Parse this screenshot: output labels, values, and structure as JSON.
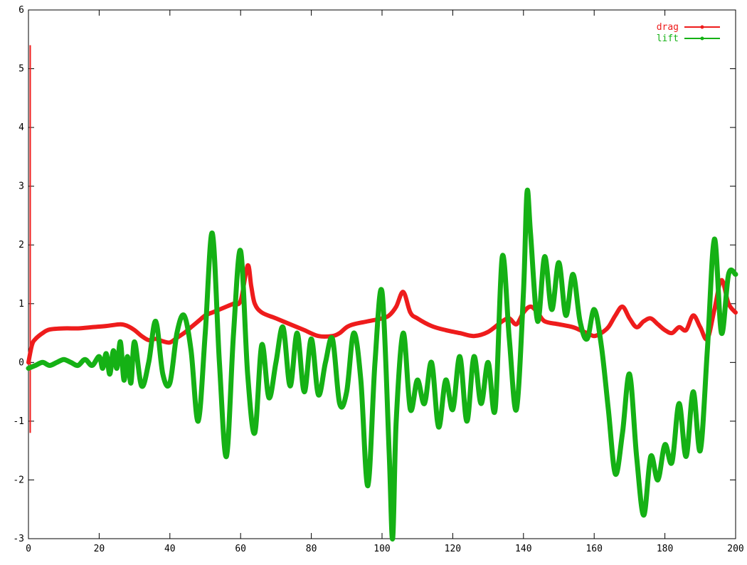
{
  "chart_data": {
    "type": "line",
    "title": "",
    "xlabel": "",
    "ylabel": "",
    "xlim": [
      0,
      200
    ],
    "ylim": [
      -3,
      6
    ],
    "x_ticks": [
      0,
      20,
      40,
      60,
      80,
      100,
      120,
      140,
      160,
      180,
      200
    ],
    "y_ticks": [
      -3,
      -2,
      -1,
      0,
      1,
      2,
      3,
      4,
      5,
      6
    ],
    "grid": false,
    "legend": {
      "position": "top-right",
      "entries": [
        {
          "name": "drag",
          "color": "#ee1c1c"
        },
        {
          "name": "lift",
          "color": "#15b115"
        }
      ]
    },
    "series": [
      {
        "name": "drag",
        "color": "#ee1c1c",
        "initial_spike": {
          "x": 0.5,
          "y_top": 5.4,
          "y_bottom": -1.2
        },
        "x": [
          0,
          1,
          2,
          4,
          6,
          10,
          14,
          18,
          22,
          26,
          28,
          30,
          32,
          34,
          36,
          38,
          40,
          42,
          44,
          46,
          48,
          50,
          52,
          54,
          56,
          58,
          60,
          62,
          63,
          64,
          66,
          70,
          74,
          78,
          82,
          86,
          88,
          90,
          92,
          96,
          100,
          102,
          104,
          106,
          108,
          110,
          114,
          118,
          122,
          126,
          130,
          134,
          136,
          138,
          140,
          142,
          144,
          146,
          150,
          154,
          156,
          158,
          160,
          162,
          164,
          166,
          168,
          170,
          172,
          174,
          176,
          178,
          180,
          182,
          184,
          186,
          188,
          190,
          192,
          194,
          196,
          198,
          200
        ],
        "y": [
          0.0,
          0.3,
          0.4,
          0.5,
          0.56,
          0.58,
          0.58,
          0.6,
          0.62,
          0.65,
          0.62,
          0.55,
          0.45,
          0.38,
          0.4,
          0.36,
          0.34,
          0.42,
          0.5,
          0.6,
          0.7,
          0.8,
          0.85,
          0.9,
          0.95,
          1.0,
          1.05,
          1.65,
          1.3,
          1.0,
          0.85,
          0.75,
          0.65,
          0.55,
          0.45,
          0.45,
          0.5,
          0.6,
          0.65,
          0.7,
          0.75,
          0.8,
          0.95,
          1.2,
          0.85,
          0.75,
          0.62,
          0.55,
          0.5,
          0.45,
          0.52,
          0.7,
          0.75,
          0.65,
          0.85,
          0.95,
          0.85,
          0.7,
          0.65,
          0.6,
          0.55,
          0.5,
          0.45,
          0.5,
          0.6,
          0.8,
          0.95,
          0.75,
          0.6,
          0.7,
          0.75,
          0.65,
          0.55,
          0.5,
          0.6,
          0.55,
          0.8,
          0.6,
          0.4,
          0.9,
          1.4,
          1.0,
          0.85
        ]
      },
      {
        "name": "lift",
        "color": "#15b115",
        "x": [
          0,
          2,
          4,
          6,
          8,
          10,
          12,
          14,
          16,
          18,
          20,
          21,
          22,
          23,
          24,
          25,
          26,
          27,
          28,
          29,
          30,
          32,
          34,
          36,
          38,
          40,
          42,
          44,
          46,
          48,
          50,
          52,
          54,
          56,
          58,
          60,
          62,
          64,
          66,
          68,
          70,
          72,
          74,
          76,
          78,
          80,
          82,
          84,
          86,
          88,
          90,
          92,
          94,
          96,
          98,
          100,
          102,
          103,
          104,
          106,
          108,
          110,
          112,
          114,
          116,
          118,
          120,
          122,
          124,
          126,
          128,
          130,
          132,
          134,
          136,
          138,
          140,
          141,
          142,
          144,
          146,
          148,
          150,
          152,
          154,
          156,
          158,
          160,
          162,
          164,
          166,
          168,
          170,
          172,
          174,
          176,
          178,
          180,
          182,
          184,
          186,
          188,
          190,
          192,
          194,
          196,
          198,
          200
        ],
        "y": [
          -0.1,
          -0.05,
          0.0,
          -0.05,
          0.0,
          0.05,
          0.0,
          -0.05,
          0.05,
          -0.05,
          0.1,
          -0.1,
          0.15,
          -0.2,
          0.2,
          -0.1,
          0.35,
          -0.3,
          0.1,
          -0.35,
          0.35,
          -0.4,
          0.0,
          0.7,
          -0.2,
          -0.35,
          0.5,
          0.8,
          0.2,
          -1.0,
          0.5,
          2.2,
          0.0,
          -1.6,
          0.5,
          1.9,
          -0.2,
          -1.2,
          0.3,
          -0.6,
          0.0,
          0.6,
          -0.4,
          0.5,
          -0.5,
          0.4,
          -0.55,
          0.0,
          0.4,
          -0.7,
          -0.5,
          0.5,
          -0.3,
          -2.1,
          0.0,
          1.2,
          -1.5,
          -3.0,
          -1.0,
          0.5,
          -0.8,
          -0.3,
          -0.7,
          0.0,
          -1.1,
          -0.3,
          -0.8,
          0.1,
          -1.0,
          0.1,
          -0.7,
          0.0,
          -0.8,
          1.8,
          0.4,
          -0.8,
          1.2,
          2.9,
          2.2,
          0.7,
          1.8,
          0.9,
          1.7,
          0.8,
          1.5,
          0.7,
          0.4,
          0.9,
          0.3,
          -0.8,
          -1.9,
          -1.2,
          -0.2,
          -1.6,
          -2.6,
          -1.6,
          -2.0,
          -1.4,
          -1.7,
          -0.7,
          -1.6,
          -0.5,
          -1.5,
          0.2,
          2.1,
          0.5,
          1.5,
          1.5
        ]
      }
    ]
  }
}
